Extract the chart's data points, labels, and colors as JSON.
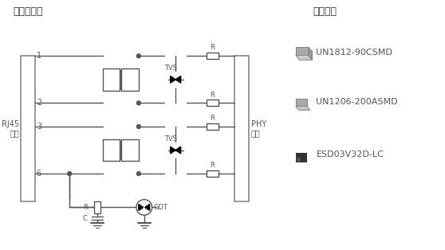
{
  "title_left": "防护电路图",
  "title_right": "产品外观",
  "rj45_label": "RJ45\n接口",
  "phy_label": "PHY\n芯片",
  "pin_labels": [
    "1",
    "2",
    "3",
    "6"
  ],
  "component_labels": [
    "TVS",
    "TVS"
  ],
  "bottom_labels": [
    "R",
    "C",
    "GDT"
  ],
  "products": [
    "ESD03V32D-LC",
    "UN1206-200ASMD",
    "UN1812-90CSMD"
  ],
  "line_color": "#555555",
  "text_color": "#555555",
  "bg_color": "#ffffff",
  "box_color": "#888888"
}
